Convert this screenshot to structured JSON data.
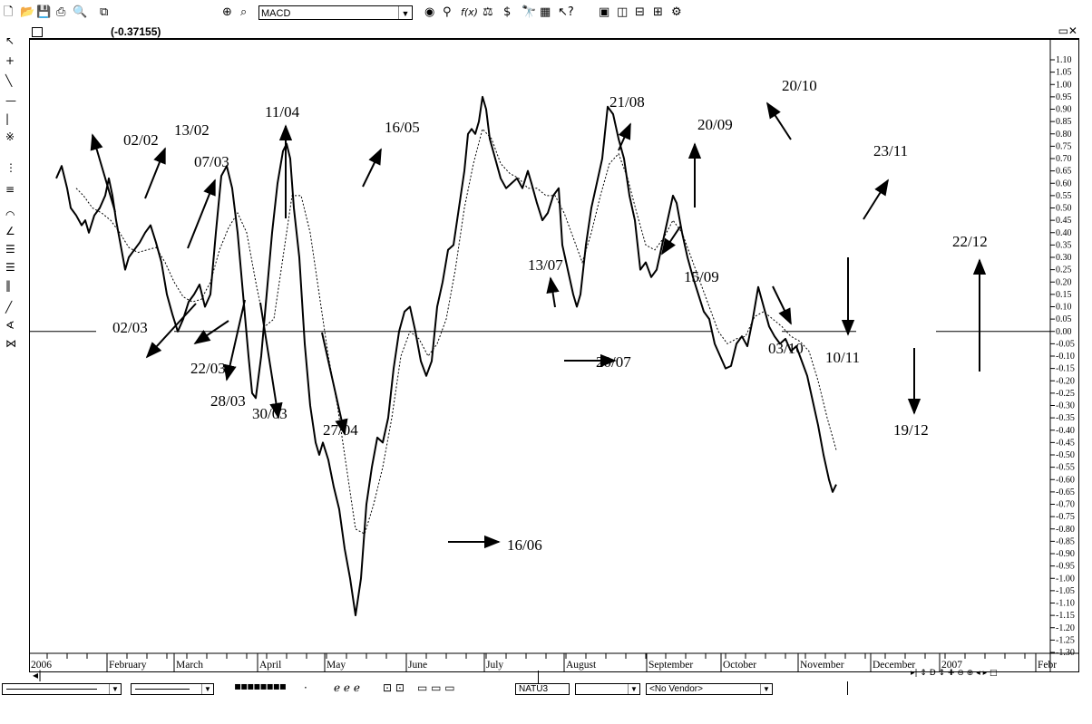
{
  "toolbar": {
    "icons": [
      "new-icon",
      "open-icon",
      "save-icon",
      "print-icon",
      "print-preview-icon",
      "copy-icon",
      "crosshair-icon",
      "zoom-icon",
      "binoculars-icon",
      "help-icon",
      "tile-icon",
      "window-icon"
    ],
    "indicator_select": "MACD"
  },
  "header": {
    "value_readout": "(-0.37155)",
    "window_controls": "▭✕"
  },
  "chart_data": {
    "type": "line",
    "title": "",
    "series": [
      {
        "name": "",
        "style": "solid"
      },
      {
        "name": "",
        "style": "dotted"
      }
    ],
    "x_labels": [
      "2006",
      "February",
      "March",
      "April",
      "May",
      "June",
      "July",
      "August",
      "September",
      "October",
      "November",
      "December",
      "2007",
      "Febr"
    ],
    "y_ticks": [
      "1.10",
      "1.05",
      "1.00",
      "0.95",
      "0.90",
      "0.85",
      "0.80",
      "0.75",
      "0.70",
      "0.65",
      "0.60",
      "0.55",
      "0.50",
      "0.45",
      "0.40",
      "0.35",
      "0.30",
      "0.25",
      "0.20",
      "0.15",
      "0.10",
      "0.05",
      "0.00",
      "-0.05",
      "-0.10",
      "-0.15",
      "-0.20",
      "-0.25",
      "-0.30",
      "-0.35",
      "-0.40",
      "-0.45",
      "-0.50",
      "-0.55",
      "-0.60",
      "-0.65",
      "-0.70",
      "-0.75",
      "-0.80",
      "-0.85",
      "-0.90",
      "-0.95",
      "-1.00",
      "-1.05",
      "-1.10",
      "-1.15",
      "-1.20",
      "-1.25",
      "-1.30"
    ],
    "ylim": [
      -1.32,
      1.12
    ],
    "macd": [
      [
        0,
        0.62
      ],
      [
        6,
        0.67
      ],
      [
        12,
        0.58
      ],
      [
        16,
        0.5
      ],
      [
        22,
        0.47
      ],
      [
        28,
        0.43
      ],
      [
        32,
        0.45
      ],
      [
        36,
        0.4
      ],
      [
        42,
        0.47
      ],
      [
        48,
        0.5
      ],
      [
        54,
        0.55
      ],
      [
        58,
        0.62
      ],
      [
        62,
        0.55
      ],
      [
        66,
        0.45
      ],
      [
        72,
        0.33
      ],
      [
        76,
        0.25
      ],
      [
        80,
        0.3
      ],
      [
        86,
        0.33
      ],
      [
        92,
        0.36
      ],
      [
        98,
        0.4
      ],
      [
        104,
        0.43
      ],
      [
        110,
        0.36
      ],
      [
        116,
        0.28
      ],
      [
        122,
        0.15
      ],
      [
        128,
        0.07
      ],
      [
        134,
        0.0
      ],
      [
        140,
        0.05
      ],
      [
        146,
        0.12
      ],
      [
        152,
        0.15
      ],
      [
        158,
        0.19
      ],
      [
        164,
        0.1
      ],
      [
        170,
        0.15
      ],
      [
        176,
        0.4
      ],
      [
        182,
        0.63
      ],
      [
        188,
        0.67
      ],
      [
        194,
        0.58
      ],
      [
        200,
        0.4
      ],
      [
        206,
        0.15
      ],
      [
        212,
        -0.1
      ],
      [
        216,
        -0.25
      ],
      [
        220,
        -0.27
      ],
      [
        226,
        -0.1
      ],
      [
        232,
        0.15
      ],
      [
        238,
        0.4
      ],
      [
        244,
        0.6
      ],
      [
        250,
        0.73
      ],
      [
        254,
        0.76
      ],
      [
        258,
        0.7
      ],
      [
        262,
        0.5
      ],
      [
        268,
        0.3
      ],
      [
        274,
        -0.05
      ],
      [
        280,
        -0.3
      ],
      [
        286,
        -0.45
      ],
      [
        290,
        -0.5
      ],
      [
        294,
        -0.45
      ],
      [
        300,
        -0.52
      ],
      [
        306,
        -0.63
      ],
      [
        312,
        -0.72
      ],
      [
        318,
        -0.88
      ],
      [
        324,
        -1.0
      ],
      [
        330,
        -1.15
      ],
      [
        336,
        -1.0
      ],
      [
        342,
        -0.7
      ],
      [
        348,
        -0.55
      ],
      [
        354,
        -0.43
      ],
      [
        360,
        -0.45
      ],
      [
        366,
        -0.35
      ],
      [
        372,
        -0.15
      ],
      [
        378,
        0.0
      ],
      [
        384,
        0.08
      ],
      [
        390,
        0.1
      ],
      [
        396,
        0.0
      ],
      [
        402,
        -0.12
      ],
      [
        408,
        -0.18
      ],
      [
        414,
        -0.12
      ],
      [
        420,
        0.1
      ],
      [
        426,
        0.2
      ],
      [
        432,
        0.33
      ],
      [
        438,
        0.35
      ],
      [
        444,
        0.5
      ],
      [
        450,
        0.65
      ],
      [
        454,
        0.8
      ],
      [
        458,
        0.82
      ],
      [
        462,
        0.8
      ],
      [
        466,
        0.85
      ],
      [
        470,
        0.95
      ],
      [
        474,
        0.9
      ],
      [
        478,
        0.78
      ],
      [
        484,
        0.7
      ],
      [
        490,
        0.62
      ],
      [
        496,
        0.58
      ],
      [
        502,
        0.6
      ],
      [
        508,
        0.62
      ],
      [
        514,
        0.58
      ],
      [
        520,
        0.65
      ],
      [
        524,
        0.6
      ],
      [
        530,
        0.52
      ],
      [
        536,
        0.45
      ],
      [
        542,
        0.48
      ],
      [
        548,
        0.55
      ],
      [
        554,
        0.58
      ],
      [
        558,
        0.35
      ],
      [
        564,
        0.25
      ],
      [
        570,
        0.15
      ],
      [
        574,
        0.1
      ],
      [
        578,
        0.15
      ],
      [
        584,
        0.35
      ],
      [
        590,
        0.5
      ],
      [
        596,
        0.6
      ],
      [
        602,
        0.7
      ],
      [
        608,
        0.91
      ],
      [
        614,
        0.88
      ],
      [
        620,
        0.78
      ],
      [
        626,
        0.7
      ],
      [
        632,
        0.55
      ],
      [
        638,
        0.45
      ],
      [
        644,
        0.25
      ],
      [
        650,
        0.28
      ],
      [
        656,
        0.22
      ],
      [
        662,
        0.25
      ],
      [
        668,
        0.35
      ],
      [
        674,
        0.45
      ],
      [
        680,
        0.55
      ],
      [
        684,
        0.52
      ],
      [
        690,
        0.4
      ],
      [
        696,
        0.3
      ],
      [
        702,
        0.22
      ],
      [
        708,
        0.15
      ],
      [
        714,
        0.08
      ],
      [
        720,
        0.05
      ],
      [
        726,
        -0.05
      ],
      [
        732,
        -0.1
      ],
      [
        738,
        -0.15
      ],
      [
        744,
        -0.14
      ],
      [
        750,
        -0.05
      ],
      [
        756,
        -0.02
      ],
      [
        762,
        -0.06
      ],
      [
        768,
        0.05
      ],
      [
        774,
        0.18
      ],
      [
        780,
        0.1
      ],
      [
        786,
        0.02
      ],
      [
        792,
        -0.02
      ],
      [
        798,
        -0.05
      ],
      [
        804,
        -0.03
      ],
      [
        810,
        -0.08
      ],
      [
        816,
        -0.06
      ],
      [
        822,
        -0.12
      ],
      [
        828,
        -0.18
      ],
      [
        834,
        -0.28
      ],
      [
        840,
        -0.38
      ],
      [
        846,
        -0.5
      ],
      [
        852,
        -0.6
      ],
      [
        856,
        -0.65
      ],
      [
        860,
        -0.62
      ]
    ],
    "signal": [
      [
        22,
        0.58
      ],
      [
        30,
        0.55
      ],
      [
        40,
        0.5
      ],
      [
        50,
        0.48
      ],
      [
        60,
        0.45
      ],
      [
        70,
        0.4
      ],
      [
        80,
        0.34
      ],
      [
        90,
        0.32
      ],
      [
        100,
        0.33
      ],
      [
        110,
        0.34
      ],
      [
        120,
        0.28
      ],
      [
        130,
        0.2
      ],
      [
        140,
        0.14
      ],
      [
        150,
        0.12
      ],
      [
        160,
        0.13
      ],
      [
        170,
        0.2
      ],
      [
        180,
        0.33
      ],
      [
        190,
        0.42
      ],
      [
        200,
        0.48
      ],
      [
        210,
        0.4
      ],
      [
        220,
        0.2
      ],
      [
        230,
        0.02
      ],
      [
        240,
        0.05
      ],
      [
        250,
        0.3
      ],
      [
        260,
        0.55
      ],
      [
        270,
        0.55
      ],
      [
        280,
        0.4
      ],
      [
        290,
        0.15
      ],
      [
        300,
        -0.1
      ],
      [
        310,
        -0.3
      ],
      [
        320,
        -0.55
      ],
      [
        330,
        -0.8
      ],
      [
        340,
        -0.82
      ],
      [
        350,
        -0.7
      ],
      [
        360,
        -0.55
      ],
      [
        370,
        -0.35
      ],
      [
        380,
        -0.1
      ],
      [
        390,
        0.0
      ],
      [
        400,
        -0.03
      ],
      [
        410,
        -0.1
      ],
      [
        420,
        -0.05
      ],
      [
        430,
        0.05
      ],
      [
        440,
        0.25
      ],
      [
        450,
        0.5
      ],
      [
        460,
        0.68
      ],
      [
        470,
        0.82
      ],
      [
        480,
        0.78
      ],
      [
        490,
        0.68
      ],
      [
        500,
        0.64
      ],
      [
        510,
        0.62
      ],
      [
        520,
        0.58
      ],
      [
        530,
        0.58
      ],
      [
        540,
        0.55
      ],
      [
        550,
        0.55
      ],
      [
        560,
        0.48
      ],
      [
        570,
        0.38
      ],
      [
        580,
        0.28
      ],
      [
        590,
        0.4
      ],
      [
        600,
        0.55
      ],
      [
        610,
        0.68
      ],
      [
        620,
        0.72
      ],
      [
        630,
        0.62
      ],
      [
        640,
        0.48
      ],
      [
        650,
        0.35
      ],
      [
        660,
        0.33
      ],
      [
        670,
        0.38
      ],
      [
        680,
        0.45
      ],
      [
        690,
        0.4
      ],
      [
        700,
        0.3
      ],
      [
        710,
        0.2
      ],
      [
        720,
        0.1
      ],
      [
        730,
        0.0
      ],
      [
        740,
        -0.05
      ],
      [
        750,
        -0.03
      ],
      [
        760,
        -0.02
      ],
      [
        770,
        0.06
      ],
      [
        780,
        0.08
      ],
      [
        790,
        0.05
      ],
      [
        800,
        0.02
      ],
      [
        810,
        -0.02
      ],
      [
        820,
        -0.04
      ],
      [
        830,
        -0.08
      ],
      [
        840,
        -0.2
      ],
      [
        850,
        -0.35
      ],
      [
        860,
        -0.48
      ]
    ],
    "annotations": [
      {
        "label": "02/02",
        "date": "02/02"
      },
      {
        "label": "13/02",
        "date": "13/02"
      },
      {
        "label": "07/03",
        "date": "07/03"
      },
      {
        "label": "02/03",
        "date": "02/03"
      },
      {
        "label": "22/03",
        "date": "22/03"
      },
      {
        "label": "28/03",
        "date": "28/03"
      },
      {
        "label": "30/03",
        "date": "30/03"
      },
      {
        "label": "11/04",
        "date": "11/04"
      },
      {
        "label": "27/04",
        "date": "27/04"
      },
      {
        "label": "16/05",
        "date": "16/05"
      },
      {
        "label": "16/06",
        "date": "16/06"
      },
      {
        "label": "13/07",
        "date": "13/07"
      },
      {
        "label": "20/07",
        "date": "20/07"
      },
      {
        "label": "21/08",
        "date": "21/08"
      },
      {
        "label": "15/09",
        "date": "15/09"
      },
      {
        "label": "20/09",
        "date": "20/09"
      },
      {
        "label": "03/10",
        "date": "03/10"
      },
      {
        "label": "20/10",
        "date": "20/10"
      },
      {
        "label": "10/11",
        "date": "10/11"
      },
      {
        "label": "23/11",
        "date": "23/11"
      },
      {
        "label": "19/12",
        "date": "19/12"
      },
      {
        "label": "22/12",
        "date": "22/12"
      }
    ]
  },
  "bottom": {
    "symbol": "NATU3",
    "vendor": "<No Vendor>",
    "nav": "▸| ↕ D ↕ ✚ ⊖ ⊕ ◂ ▸ □"
  }
}
